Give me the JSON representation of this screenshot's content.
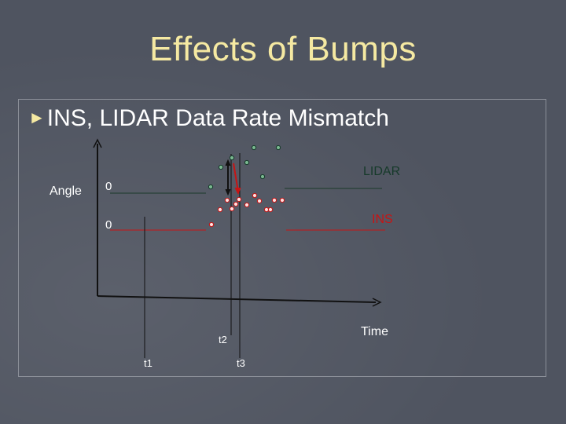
{
  "slide": {
    "title": "Effects of Bumps",
    "bullet_marker": "►",
    "bullet_text": "INS, LIDAR Data Rate Mismatch"
  },
  "diagram": {
    "y_axis_label": "Angle",
    "x_axis_label": "Time",
    "lidar_label": "LIDAR",
    "ins_label": "INS",
    "lidar_zero": "0",
    "ins_zero": "0",
    "time_markers": {
      "t1": "t1",
      "t2": "t2",
      "t3": "t3"
    },
    "lidar_color": "#163a2a",
    "ins_color": "#c81414",
    "dot_lidar_fill": "#7ab890",
    "dot_ins_fill": "#ffe0e0"
  }
}
